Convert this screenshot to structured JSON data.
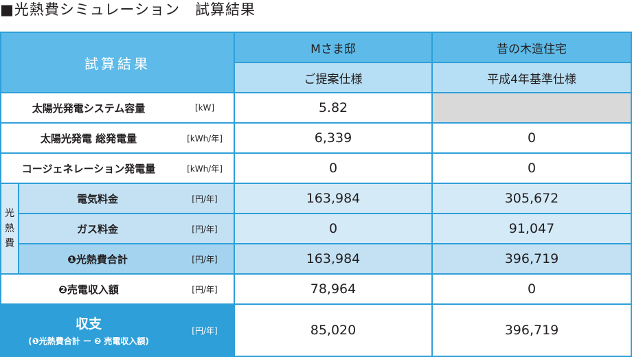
{
  "title": "■光熱費シミュレーション　試算結果",
  "header": {
    "corner": "試算結果",
    "col1_name": "Mさま邸",
    "col1_spec": "ご提案仕様",
    "col2_name": "昔の木造住宅",
    "col2_spec": "平成4年基準仕様"
  },
  "side_label": [
    "光",
    "熱",
    "費"
  ],
  "rows": [
    {
      "label": "太陽光発電システム容量",
      "unit": "[kW]",
      "v1": "5.82",
      "v2": ""
    },
    {
      "label": "太陽光発電 総発電量",
      "unit": "[kWh/年]",
      "v1": "6,339",
      "v2": "0"
    },
    {
      "label": "コージェネレーション発電量",
      "unit": "[kWh/年]",
      "v1": "0",
      "v2": "0"
    },
    {
      "label": "電気料金",
      "unit": "[円/年]",
      "v1": "163,984",
      "v2": "305,672"
    },
    {
      "label": "ガス料金",
      "unit": "[円/年]",
      "v1": "0",
      "v2": "91,047"
    },
    {
      "label": "❶光熱費合計",
      "unit": "[円/年]",
      "v1": "163,984",
      "v2": "396,719"
    },
    {
      "label": "❷売電収入額",
      "unit": "[円/年]",
      "v1": "78,964",
      "v2": "0"
    }
  ],
  "summary": {
    "label": "収支",
    "formula": "(❶光熱費合計 ー ❷ 売電収入額)",
    "unit": "[円/年]",
    "v1": "85,020",
    "v2": "396,719"
  }
}
